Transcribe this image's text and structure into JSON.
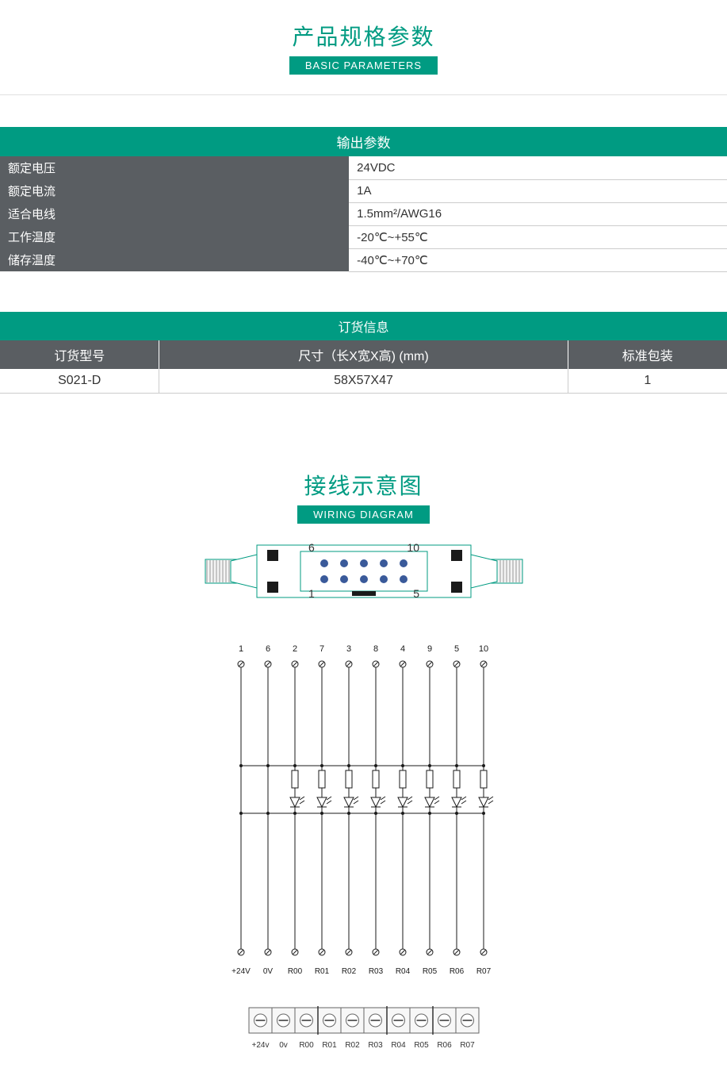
{
  "colors": {
    "teal": "#009b82",
    "teal_dark": "#00876f",
    "gray_header": "#5a5e62",
    "gray_border": "#cccccc",
    "text": "#333333",
    "pin_blue": "#3a5a9a",
    "diagram_stroke": "#1a1a1a"
  },
  "section1": {
    "title": "产品规格参数",
    "subtitle": "BASIC PARAMETERS"
  },
  "output_table": {
    "header": "输出参数",
    "rows": [
      {
        "key": "额定电压",
        "val": "24VDC"
      },
      {
        "key": "额定电流",
        "val": "1A"
      },
      {
        "key": "适合电线",
        "val": "1.5mm²/AWG16"
      },
      {
        "key": "工作温度",
        "val": "-20℃~+55℃"
      },
      {
        "key": "储存温度",
        "val": "-40℃~+70℃"
      }
    ]
  },
  "order_table": {
    "header": "订货信息",
    "columns": [
      "订货型号",
      "尺寸（长X宽X高) (mm)",
      "标准包装"
    ],
    "row": [
      "S021-D",
      "58X57X47",
      "1"
    ]
  },
  "section2": {
    "title": "接线示意图",
    "subtitle": "WIRING DIAGRAM"
  },
  "connector": {
    "top_left": "6",
    "top_right": "10",
    "bot_left": "1",
    "bot_right": "5",
    "pin_count_row": 5
  },
  "wiring": {
    "top_labels": [
      "1",
      "6",
      "2",
      "7",
      "3",
      "8",
      "4",
      "9",
      "5",
      "10"
    ],
    "bottom_labels": [
      "+24V",
      "0V",
      "R00",
      "R01",
      "R02",
      "R03",
      "R04",
      "R05",
      "R06",
      "R07"
    ],
    "channel_count": 8
  },
  "terminal_block": {
    "labels": [
      "+24v",
      "0v",
      "R00",
      "R01",
      "R02",
      "R03",
      "R04",
      "R05",
      "R06",
      "R07"
    ]
  }
}
